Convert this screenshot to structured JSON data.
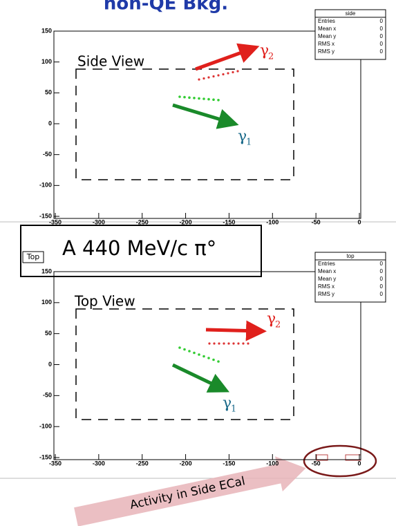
{
  "title": "non-QE Bkg.",
  "panels": [
    {
      "view_label": "Side View",
      "gamma2": {
        "symbol": "γ",
        "sub": "2"
      },
      "gamma1": {
        "symbol": "γ",
        "sub": "1"
      },
      "stats": {
        "title": "side",
        "rows": [
          {
            "label": "Entries",
            "value": 0
          },
          {
            "label": "Mean x",
            "value": 0
          },
          {
            "label": "Mean y",
            "value": 0
          },
          {
            "label": "RMS x",
            "value": 0
          },
          {
            "label": "RMS y",
            "value": 0
          }
        ]
      },
      "xlim": [
        -350,
        0
      ],
      "xticks": [
        -350,
        -300,
        -250,
        -200,
        -150,
        -100,
        -50,
        0
      ],
      "ylim": [
        -150,
        150
      ],
      "yticks": [
        150,
        100,
        50,
        0,
        -50,
        -100,
        -150
      ]
    },
    {
      "view_label": "Top View",
      "gamma2": {
        "symbol": "γ",
        "sub": "2"
      },
      "gamma1": {
        "symbol": "γ",
        "sub": "1"
      },
      "stats": {
        "title": "top",
        "rows": [
          {
            "label": "Entries",
            "value": 0
          },
          {
            "label": "Mean x",
            "value": 0
          },
          {
            "label": "Mean y",
            "value": 0
          },
          {
            "label": "RMS x",
            "value": 0
          },
          {
            "label": "RMS y",
            "value": 0
          }
        ]
      },
      "xlim": [
        -350,
        0
      ],
      "xticks": [
        -350,
        -300,
        -250,
        -200,
        -150,
        -100,
        -50,
        0
      ],
      "ylim": [
        -150,
        150
      ],
      "yticks": [
        150,
        100,
        50,
        0,
        -50,
        -100,
        -150
      ]
    }
  ],
  "pad_label": "Top",
  "event_label": "A 440 MeV/c π°",
  "annotation": "Activity in Side ECal"
}
